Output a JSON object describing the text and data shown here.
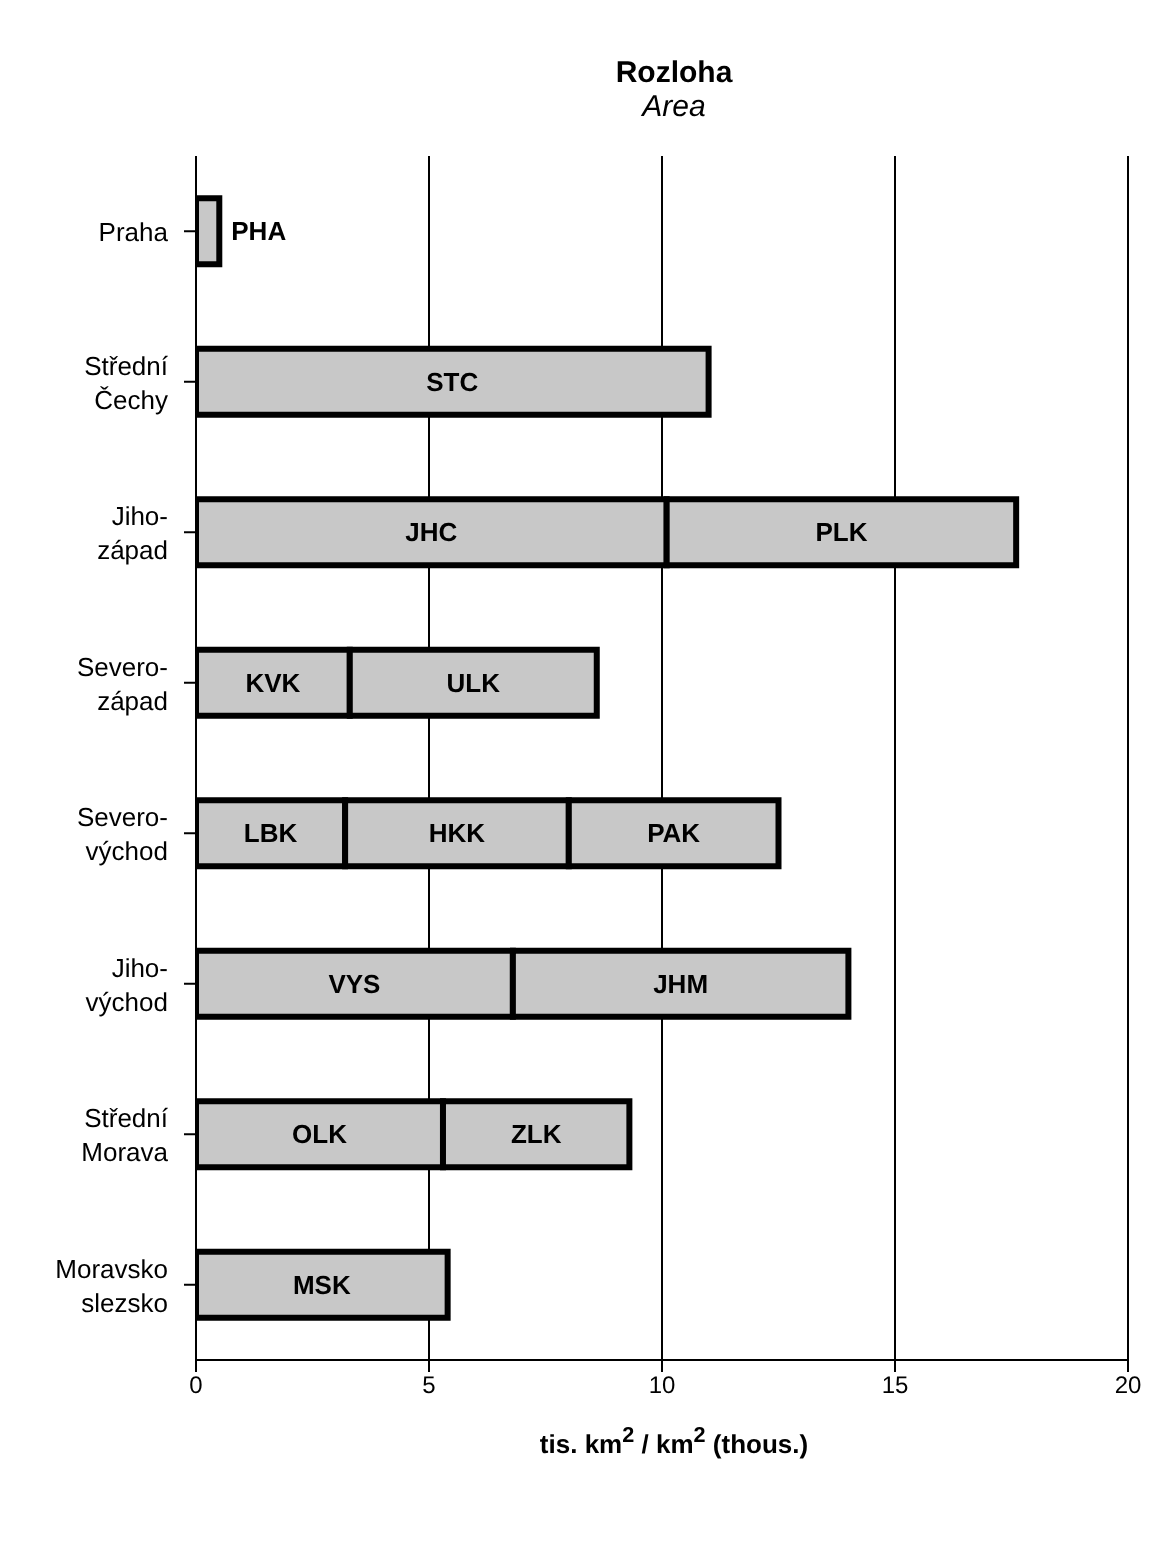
{
  "chart_data": {
    "type": "bar",
    "orientation": "horizontal",
    "stacked": true,
    "title": "Rozloha",
    "subtitle": "Area",
    "xlabel": "tis. km$^{2}$ / km$^{2}$ (thous.)",
    "categories": [
      "Praha",
      "Střední Čechy",
      "Jiho-západ",
      "Severo-západ",
      "Severo-východ",
      "Jiho-východ",
      "Střední Morava",
      "Moravsko slezsko"
    ],
    "series": [
      {
        "color": "#c8c8c8",
        "values": [
          0.5,
          11.0,
          10.1,
          3.3,
          3.2,
          6.8,
          5.3,
          5.4
        ],
        "value_labels": [
          "PHA",
          "STC",
          "JHC",
          "KVK",
          "LBK",
          "VYS",
          "OLK",
          "MSK"
        ]
      },
      {
        "color": "#c8c8c8",
        "values": [
          null,
          null,
          7.5,
          5.3,
          4.8,
          7.2,
          4.0,
          null
        ],
        "value_labels": [
          null,
          null,
          "PLK",
          "ULK",
          "HKK",
          "JHM",
          "ZLK",
          null
        ]
      },
      {
        "color": "#c8c8c8",
        "values": [
          null,
          null,
          null,
          null,
          4.5,
          null,
          null,
          null
        ],
        "value_labels": [
          null,
          null,
          null,
          null,
          "PAK",
          null,
          null,
          null
        ]
      }
    ],
    "xlim": [
      0,
      20
    ],
    "xticks": [
      0,
      5,
      10,
      15,
      20
    ],
    "grid": "x"
  }
}
